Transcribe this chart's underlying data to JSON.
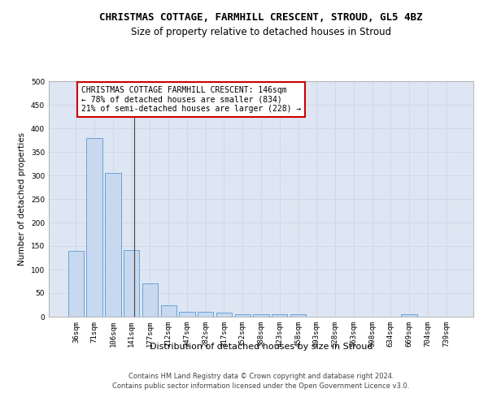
{
  "title": "CHRISTMAS COTTAGE, FARMHILL CRESCENT, STROUD, GL5 4BZ",
  "subtitle": "Size of property relative to detached houses in Stroud",
  "xlabel": "Distribution of detached houses by size in Stroud",
  "ylabel": "Number of detached properties",
  "categories": [
    "36sqm",
    "71sqm",
    "106sqm",
    "141sqm",
    "177sqm",
    "212sqm",
    "247sqm",
    "282sqm",
    "317sqm",
    "352sqm",
    "388sqm",
    "423sqm",
    "458sqm",
    "493sqm",
    "528sqm",
    "563sqm",
    "598sqm",
    "634sqm",
    "669sqm",
    "704sqm",
    "739sqm"
  ],
  "values": [
    140,
    380,
    305,
    142,
    70,
    25,
    10,
    10,
    8,
    5,
    5,
    5,
    5,
    0,
    0,
    0,
    0,
    0,
    5,
    0,
    0
  ],
  "bar_color": "#c8d8ee",
  "bar_edge_color": "#5b9bd5",
  "annotation_box_text": "CHRISTMAS COTTAGE FARMHILL CRESCENT: 146sqm\n← 78% of detached houses are smaller (834)\n21% of semi-detached houses are larger (228) →",
  "annotation_box_color": "#ffffff",
  "annotation_box_edge_color": "#cc0000",
  "grid_color": "#d0d8e8",
  "background_color": "#dde6f2",
  "ylim": [
    0,
    500
  ],
  "yticks": [
    0,
    50,
    100,
    150,
    200,
    250,
    300,
    350,
    400,
    450,
    500
  ],
  "footer_line1": "Contains HM Land Registry data © Crown copyright and database right 2024.",
  "footer_line2": "Contains public sector information licensed under the Open Government Licence v3.0.",
  "title_fontsize": 9,
  "subtitle_fontsize": 8.5,
  "xlabel_fontsize": 8,
  "ylabel_fontsize": 7.5,
  "tick_fontsize": 6.5,
  "annotation_fontsize": 7,
  "footer_fontsize": 6
}
